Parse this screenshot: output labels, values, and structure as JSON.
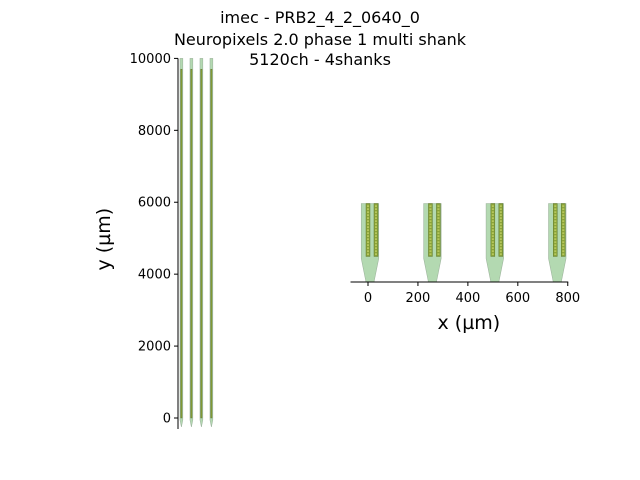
{
  "title": {
    "line1": "imec - PRB2_4_2_0640_0",
    "line2": "Neuropixels 2.0 phase 1 multi shank",
    "line3": "5120ch - 4shanks"
  },
  "colors": {
    "shank_fill": "#b3d9b1",
    "contact_fill": "#8aa33a",
    "axis": "#000000"
  },
  "chart_data": [
    {
      "type": "probe-layout",
      "view": "full",
      "ylabel": "y (µm)",
      "ylim": [
        -250,
        10000
      ],
      "yticks": [
        0,
        2000,
        4000,
        6000,
        8000,
        10000
      ],
      "ytick_labels": [
        "0",
        "2000",
        "4000",
        "6000",
        "8000",
        "10000"
      ],
      "shank_x": [
        0,
        250,
        500,
        750
      ],
      "shank_width": 70,
      "shank_top": 10000,
      "tip_y": -250,
      "contact_top": 9700,
      "contact_bottom": 0
    },
    {
      "type": "probe-layout",
      "view": "zoom",
      "xlabel": "x (µm)",
      "xlim": [
        -70,
        830
      ],
      "xticks": [
        0,
        200,
        400,
        600,
        800
      ],
      "xtick_labels": [
        "0",
        "200",
        "400",
        "600",
        "800"
      ],
      "shank_x": [
        0,
        250,
        500,
        750
      ],
      "shank_width": 70,
      "top_y": 6000,
      "taper_y": 4600,
      "tip_y": 4000,
      "contact_top": 6000,
      "contact_bottom": 4600
    }
  ]
}
